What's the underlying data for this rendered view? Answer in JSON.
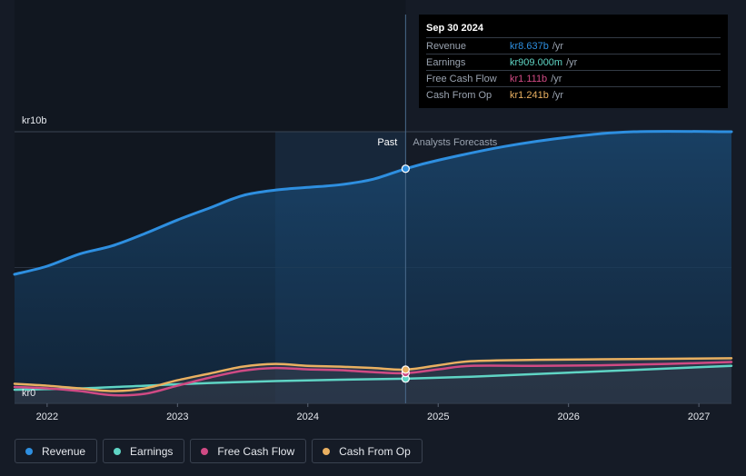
{
  "chart_data": {
    "type": "line",
    "title": "",
    "currency_prefix": "kr",
    "y_axis": {
      "label_top": "kr10b",
      "label_bottom": "kr0",
      "ylim": [
        0,
        10
      ]
    },
    "x_ticks": [
      "2022",
      "2023",
      "2024",
      "2025",
      "2026",
      "2027"
    ],
    "xlim": [
      2021.75,
      2027.25
    ],
    "divider_x": 2024.75,
    "highlight_start_x": 2023.75,
    "past_label": "Past",
    "forecast_label": "Analysts Forecasts",
    "series": [
      {
        "name": "Revenue",
        "color": "#2e8fe0",
        "points": [
          [
            2021.75,
            4.75
          ],
          [
            2022.0,
            5.05
          ],
          [
            2022.25,
            5.5
          ],
          [
            2022.5,
            5.8
          ],
          [
            2022.75,
            6.25
          ],
          [
            2023.0,
            6.75
          ],
          [
            2023.25,
            7.2
          ],
          [
            2023.5,
            7.65
          ],
          [
            2023.75,
            7.85
          ],
          [
            2024.0,
            7.95
          ],
          [
            2024.25,
            8.05
          ],
          [
            2024.5,
            8.25
          ],
          [
            2024.75,
            8.637
          ],
          [
            2025.0,
            8.95
          ],
          [
            2025.5,
            9.45
          ],
          [
            2026.0,
            9.8
          ],
          [
            2026.5,
            10.0
          ],
          [
            2027.25,
            10.0
          ]
        ]
      },
      {
        "name": "Earnings",
        "color": "#5fd4c4",
        "points": [
          [
            2021.75,
            0.5
          ],
          [
            2022.25,
            0.55
          ],
          [
            2022.75,
            0.65
          ],
          [
            2023.25,
            0.75
          ],
          [
            2023.75,
            0.82
          ],
          [
            2024.25,
            0.87
          ],
          [
            2024.75,
            0.909
          ],
          [
            2025.25,
            0.98
          ],
          [
            2025.75,
            1.08
          ],
          [
            2026.25,
            1.18
          ],
          [
            2026.75,
            1.28
          ],
          [
            2027.25,
            1.38
          ]
        ]
      },
      {
        "name": "Free Cash Flow",
        "color": "#d04a84",
        "points": [
          [
            2021.75,
            0.6
          ],
          [
            2022.0,
            0.55
          ],
          [
            2022.25,
            0.45
          ],
          [
            2022.5,
            0.3
          ],
          [
            2022.75,
            0.35
          ],
          [
            2023.0,
            0.65
          ],
          [
            2023.25,
            0.95
          ],
          [
            2023.5,
            1.2
          ],
          [
            2023.75,
            1.3
          ],
          [
            2024.0,
            1.25
          ],
          [
            2024.25,
            1.22
          ],
          [
            2024.5,
            1.15
          ],
          [
            2024.75,
            1.111
          ],
          [
            2025.0,
            1.25
          ],
          [
            2025.25,
            1.38
          ],
          [
            2025.75,
            1.38
          ],
          [
            2026.25,
            1.4
          ],
          [
            2026.75,
            1.45
          ],
          [
            2027.25,
            1.52
          ]
        ]
      },
      {
        "name": "Cash From Op",
        "color": "#e9b061",
        "points": [
          [
            2021.75,
            0.72
          ],
          [
            2022.0,
            0.65
          ],
          [
            2022.25,
            0.55
          ],
          [
            2022.5,
            0.45
          ],
          [
            2022.75,
            0.55
          ],
          [
            2023.0,
            0.85
          ],
          [
            2023.25,
            1.1
          ],
          [
            2023.5,
            1.35
          ],
          [
            2023.75,
            1.45
          ],
          [
            2024.0,
            1.38
          ],
          [
            2024.25,
            1.35
          ],
          [
            2024.5,
            1.3
          ],
          [
            2024.75,
            1.241
          ],
          [
            2025.0,
            1.4
          ],
          [
            2025.25,
            1.55
          ],
          [
            2025.75,
            1.6
          ],
          [
            2026.25,
            1.62
          ],
          [
            2026.75,
            1.64
          ],
          [
            2027.25,
            1.66
          ]
        ]
      }
    ],
    "tooltip": {
      "date": "Sep 30 2024",
      "rows": [
        {
          "label": "Revenue",
          "value": "kr8.637b",
          "unit": "/yr",
          "color": "#2e8fe0"
        },
        {
          "label": "Earnings",
          "value": "kr909.000m",
          "unit": "/yr",
          "color": "#5fd4c4"
        },
        {
          "label": "Free Cash Flow",
          "value": "kr1.111b",
          "unit": "/yr",
          "color": "#d04a84"
        },
        {
          "label": "Cash From Op",
          "value": "kr1.241b",
          "unit": "/yr",
          "color": "#e9b061"
        }
      ]
    },
    "legend": [
      "Revenue",
      "Earnings",
      "Free Cash Flow",
      "Cash From Op"
    ]
  }
}
